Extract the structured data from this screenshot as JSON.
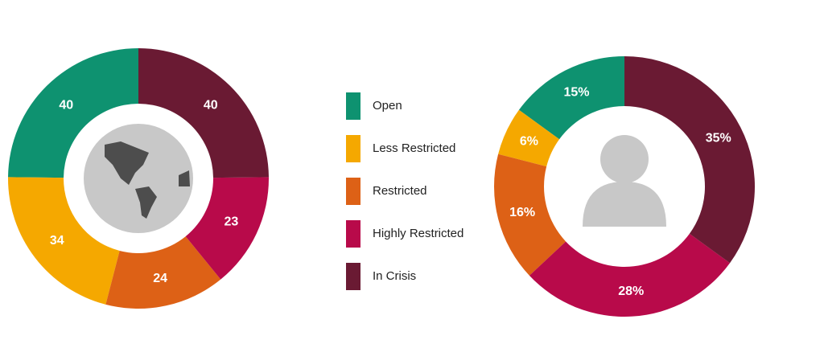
{
  "chart_data": [
    {
      "type": "donut",
      "values": [
        40,
        34,
        24,
        23,
        40
      ]
    },
    {
      "type": "donut",
      "values": [
        15,
        6,
        16,
        28,
        35
      ],
      "value_labels": [
        "15%",
        "6%",
        "16%",
        "28%",
        "35%"
      ]
    }
  ],
  "legend": {
    "items": [
      "Open",
      "Less Restricted",
      "Restricted",
      "Highly Restricted",
      "In Crisis"
    ],
    "colors": [
      "#0e9270",
      "#f5a800",
      "#dd6116",
      "#b80a4a",
      "#6a1a33"
    ]
  }
}
